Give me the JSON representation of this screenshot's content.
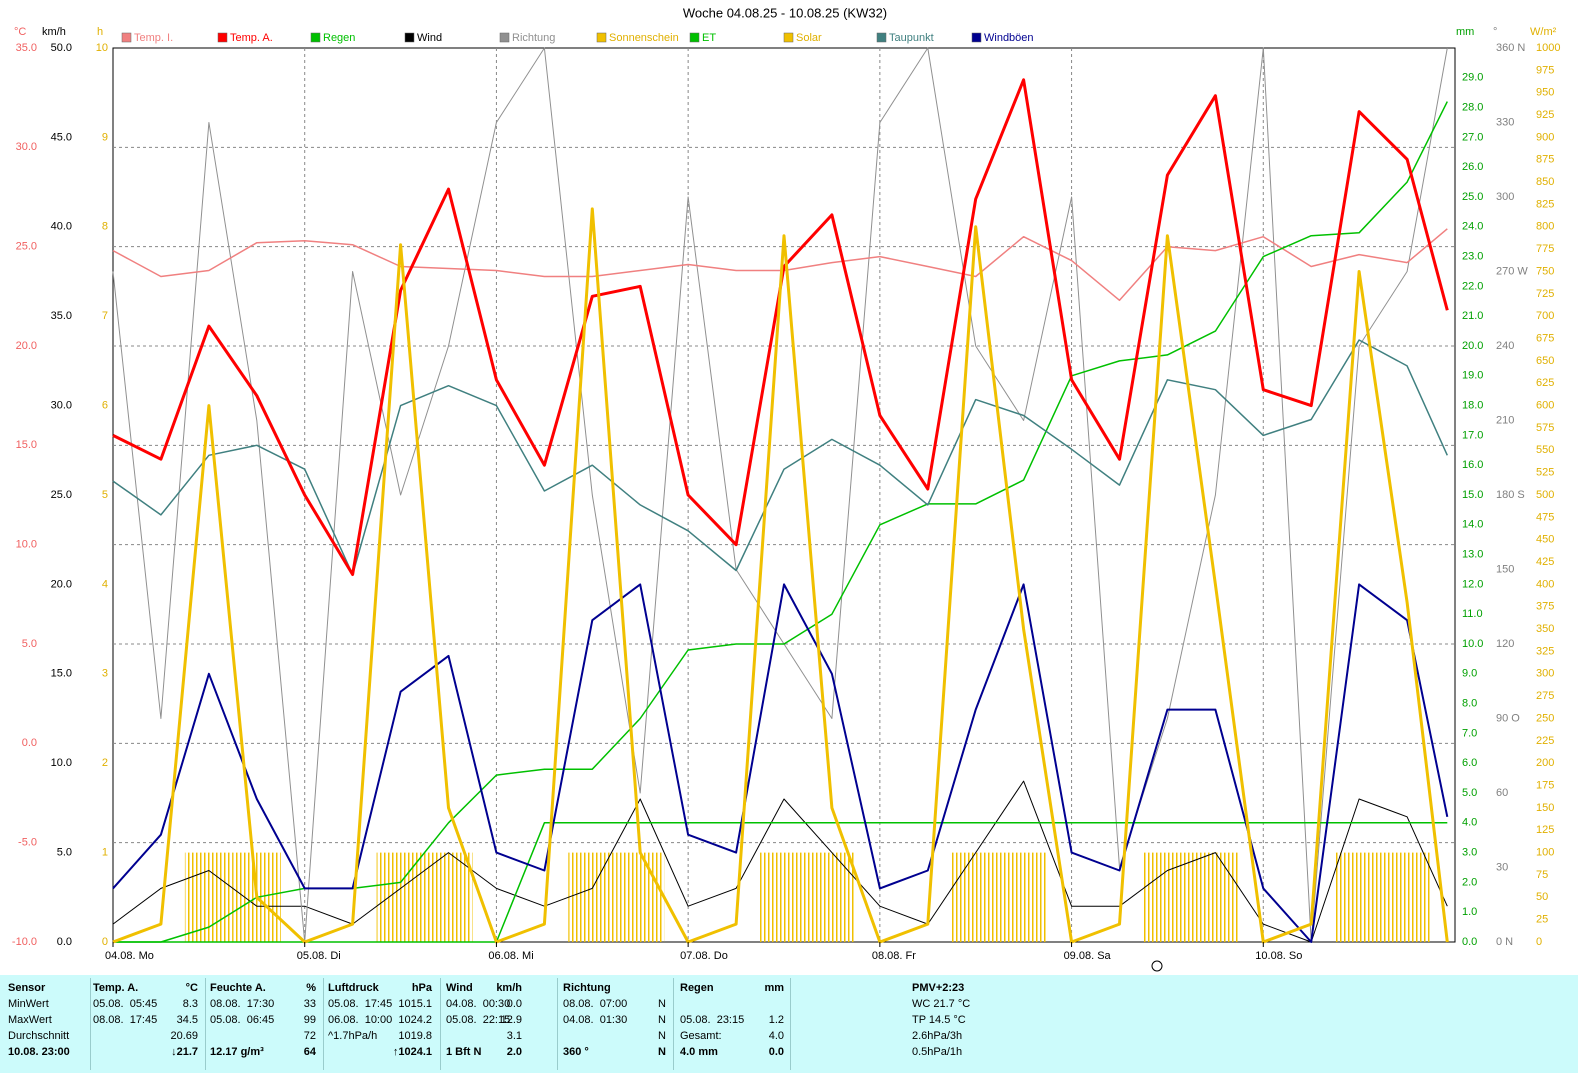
{
  "chart_data": {
    "type": "line",
    "title": "Woche 04.08.25 - 10.08.25 (KW32)",
    "grid": true,
    "xlim": [
      0,
      7
    ],
    "xticks": [
      {
        "value": 0,
        "label": "04.08.  Mo"
      },
      {
        "value": 1,
        "label": "05.08.  Di"
      },
      {
        "value": 2,
        "label": "06.08.  Mi"
      },
      {
        "value": 3,
        "label": "07.08.  Do"
      },
      {
        "value": 4,
        "label": "08.08.  Fr"
      },
      {
        "value": 5,
        "label": "09.08.  Sa"
      },
      {
        "value": 6,
        "label": "10.08.  So"
      }
    ],
    "x": [
      0,
      0.25,
      0.5,
      0.75,
      1,
      1.25,
      1.5,
      1.75,
      2,
      2.25,
      2.5,
      2.75,
      3,
      3.25,
      3.5,
      3.75,
      4,
      4.25,
      4.5,
      4.75,
      5,
      5.25,
      5.5,
      5.75,
      6,
      6.25,
      6.5,
      6.75,
      6.96
    ],
    "axes": [
      {
        "label": "°C",
        "color": "#f06060",
        "lim": [
          -10,
          35
        ],
        "ticks": [
          {
            "value": -10,
            "label": "-10.0"
          },
          {
            "value": -5,
            "label": "-5.0"
          },
          {
            "value": 0,
            "label": "0.0"
          },
          {
            "value": 5,
            "label": "5.0"
          },
          {
            "value": 10,
            "label": "10.0"
          },
          {
            "value": 15,
            "label": "15.0"
          },
          {
            "value": 20,
            "label": "20.0"
          },
          {
            "value": 25,
            "label": "25.0"
          },
          {
            "value": 30,
            "label": "30.0"
          },
          {
            "value": 35,
            "label": "35.0"
          }
        ]
      },
      {
        "label": "km/h",
        "color": "#000000",
        "lim": [
          0,
          50
        ],
        "ticks": [
          {
            "value": 0,
            "label": "0.0"
          },
          {
            "value": 5,
            "label": "5.0"
          },
          {
            "value": 10,
            "label": "10.0"
          },
          {
            "value": 15,
            "label": "15.0"
          },
          {
            "value": 20,
            "label": "20.0"
          },
          {
            "value": 25,
            "label": "25.0"
          },
          {
            "value": 30,
            "label": "30.0"
          },
          {
            "value": 35,
            "label": "35.0"
          },
          {
            "value": 40,
            "label": "40.0"
          },
          {
            "value": 45,
            "label": "45.0"
          },
          {
            "value": 50,
            "label": "50.0"
          }
        ]
      },
      {
        "label": "h",
        "color": "#e0b000",
        "lim": [
          0,
          10
        ],
        "ticks": [
          0,
          1,
          2,
          3,
          4,
          5,
          6,
          7,
          8,
          9,
          10
        ]
      },
      {
        "label": "mm",
        "color": "#00a000",
        "lim": [
          0,
          30
        ],
        "ticks": [
          {
            "value": 0,
            "label": "0.0"
          },
          {
            "value": 1,
            "label": "1.0"
          },
          {
            "value": 2,
            "label": "2.0"
          },
          {
            "value": 3,
            "label": "3.0"
          },
          {
            "value": 4,
            "label": "4.0"
          },
          {
            "value": 5,
            "label": "5.0"
          },
          {
            "value": 6,
            "label": "6.0"
          },
          {
            "value": 7,
            "label": "7.0"
          },
          {
            "value": 8,
            "label": "8.0"
          },
          {
            "value": 9,
            "label": "9.0"
          },
          {
            "value": 10,
            "label": "10.0"
          },
          {
            "value": 11,
            "label": "11.0"
          },
          {
            "value": 12,
            "label": "12.0"
          },
          {
            "value": 13,
            "label": "13.0"
          },
          {
            "value": 14,
            "label": "14.0"
          },
          {
            "value": 15,
            "label": "15.0"
          },
          {
            "value": 16,
            "label": "16.0"
          },
          {
            "value": 17,
            "label": "17.0"
          },
          {
            "value": 18,
            "label": "18.0"
          },
          {
            "value": 19,
            "label": "19.0"
          },
          {
            "value": 20,
            "label": "20.0"
          },
          {
            "value": 21,
            "label": "21.0"
          },
          {
            "value": 22,
            "label": "22.0"
          },
          {
            "value": 23,
            "label": "23.0"
          },
          {
            "value": 24,
            "label": "24.0"
          },
          {
            "value": 25,
            "label": "25.0"
          },
          {
            "value": 26,
            "label": "26.0"
          },
          {
            "value": 27,
            "label": "27.0"
          },
          {
            "value": 28,
            "label": "28.0"
          },
          {
            "value": 29,
            "label": "29.0"
          }
        ]
      },
      {
        "label": "°",
        "color": "#808080",
        "lim": [
          0,
          360
        ],
        "ticks": [
          {
            "value": 0,
            "label": "0 N"
          },
          30,
          60,
          {
            "value": 90,
            "label": "90 O"
          },
          120,
          150,
          {
            "value": 180,
            "label": "180 S"
          },
          210,
          240,
          {
            "value": 270,
            "label": "270 W"
          },
          300,
          330,
          {
            "value": 360,
            "label": "360 N"
          }
        ]
      },
      {
        "label": "W/m²",
        "color": "#e0b000",
        "lim": [
          0,
          1000
        ],
        "ticks": [
          0,
          25,
          50,
          75,
          100,
          125,
          150,
          175,
          200,
          225,
          250,
          275,
          300,
          325,
          350,
          375,
          400,
          425,
          450,
          475,
          500,
          525,
          550,
          575,
          600,
          625,
          650,
          675,
          700,
          725,
          750,
          775,
          800,
          825,
          850,
          875,
          900,
          925,
          950,
          975,
          1000
        ]
      }
    ],
    "series": [
      {
        "name": "Temp. I.",
        "color": "#f08080",
        "axis": "°C",
        "width": 1.5,
        "values": [
          24.8,
          23.5,
          23.8,
          25.2,
          25.3,
          25.1,
          24.0,
          23.9,
          23.8,
          23.5,
          23.5,
          23.8,
          24.1,
          23.8,
          23.8,
          24.2,
          24.5,
          24.0,
          23.5,
          25.5,
          24.3,
          22.3,
          25.0,
          24.8,
          25.5,
          24.0,
          24.6,
          24.2,
          25.9
        ]
      },
      {
        "name": "Temp. A.",
        "color": "#ff0000",
        "axis": "°C",
        "width": 3,
        "values": [
          15.5,
          14.3,
          21,
          17.5,
          12.5,
          8.5,
          22.8,
          27.9,
          18.3,
          14,
          22.5,
          23,
          12.5,
          10,
          24,
          26.6,
          16.5,
          12.8,
          27.4,
          33.4,
          18.3,
          14.3,
          28.6,
          32.6,
          17.8,
          17,
          31.8,
          29.4,
          21.8
        ]
      },
      {
        "name": "Regen",
        "color": "#00c000",
        "axis": "mm",
        "width": 1.5,
        "values": [
          0,
          0,
          0,
          0,
          0,
          0,
          0,
          0,
          0,
          4,
          4,
          4,
          4,
          4,
          4,
          4,
          4,
          4,
          4,
          4,
          4,
          4,
          4,
          4,
          4,
          4,
          4,
          4,
          4
        ]
      },
      {
        "name": "Wind",
        "color": "#000000",
        "axis": "km/h",
        "width": 1,
        "values": [
          1,
          3,
          4,
          2,
          2,
          1,
          3,
          5,
          3,
          2,
          3,
          8,
          2,
          3,
          8,
          5,
          2,
          1,
          5,
          9,
          2,
          2,
          4,
          5,
          1,
          0,
          8,
          7,
          2
        ]
      },
      {
        "name": "Richtung",
        "color": "#909090",
        "axis": "°",
        "width": 1,
        "values": [
          270,
          90,
          330,
          210,
          0,
          270,
          180,
          240,
          330,
          360,
          180,
          60,
          300,
          150,
          120,
          90,
          330,
          360,
          240,
          210,
          300,
          30,
          90,
          180,
          360,
          0,
          240,
          270,
          360
        ]
      },
      {
        "name": "Sonnenschein",
        "color": "#f0c000",
        "axis": "h",
        "kind": "bar",
        "values": [
          0,
          0,
          1,
          1,
          0,
          0,
          1,
          1,
          0,
          0,
          1,
          1,
          0,
          0,
          1,
          1,
          0,
          0,
          1,
          1,
          0,
          0,
          1,
          1,
          0,
          0,
          1,
          1,
          0
        ]
      },
      {
        "name": "ET",
        "color": "#00c000",
        "axis": "mm",
        "width": 1.5,
        "values": [
          0,
          0,
          0.5,
          1.5,
          1.8,
          1.8,
          2.0,
          4.0,
          5.6,
          5.8,
          5.8,
          7.5,
          9.8,
          10.0,
          10.0,
          11.0,
          14.0,
          14.7,
          14.7,
          15.5,
          19.0,
          19.5,
          19.7,
          20.5,
          23.0,
          23.7,
          23.8,
          25.5,
          28.2
        ]
      },
      {
        "name": "Solar",
        "color": "#f0c000",
        "axis": "W/m²",
        "width": 3,
        "values": [
          0,
          20,
          600,
          50,
          0,
          20,
          780,
          150,
          0,
          20,
          820,
          100,
          0,
          20,
          790,
          150,
          0,
          20,
          800,
          350,
          0,
          20,
          790,
          400,
          0,
          20,
          750,
          380,
          0
        ]
      },
      {
        "name": "Taupunkt",
        "color": "#408080",
        "axis": "°C",
        "width": 1.5,
        "values": [
          13.2,
          11.5,
          14.5,
          15,
          13.8,
          8.5,
          17,
          18,
          17,
          12.7,
          14,
          12,
          10.7,
          8.7,
          13.8,
          15.3,
          14,
          12,
          17.3,
          16.5,
          14.8,
          13,
          18.3,
          17.8,
          15.5,
          16.3,
          20.3,
          19,
          14.5
        ]
      },
      {
        "name": "Windböen",
        "color": "#000090",
        "axis": "km/h",
        "width": 2,
        "values": [
          3,
          6,
          15,
          8,
          3,
          3,
          14,
          16,
          5,
          4,
          18,
          20,
          6,
          5,
          20,
          15,
          3,
          4,
          13,
          20,
          5,
          4,
          13,
          13,
          3,
          0,
          20,
          18,
          7
        ]
      }
    ]
  },
  "summary_table": {
    "columns": [
      {
        "header": [
          "Sensor"
        ],
        "rows": [
          [
            "MinWert"
          ],
          [
            "MaxWert"
          ],
          [
            "Durchschnitt"
          ],
          [
            "10.08. 23:00"
          ]
        ]
      },
      {
        "header": [
          "Temp. A.",
          "°C"
        ],
        "rows": [
          [
            "05.08.  05:45",
            "8.3"
          ],
          [
            "08.08.  17:45",
            "34.5"
          ],
          [
            null,
            "20.69"
          ],
          [
            null,
            "↓21.7"
          ]
        ]
      },
      {
        "header": [
          "Feuchte A.",
          "%"
        ],
        "rows": [
          [
            "08.08.  17:30",
            "33"
          ],
          [
            "05.08.  06:45",
            "99"
          ],
          [
            null,
            "72"
          ],
          [
            "12.17 g/m³",
            "64"
          ]
        ]
      },
      {
        "header": [
          "Luftdruck",
          "hPa"
        ],
        "rows": [
          [
            "05.08.  17:45",
            "1015.1"
          ],
          [
            "06.08.  10:00",
            "1024.2"
          ],
          [
            "^1.7hPa/h",
            "1019.8"
          ],
          [
            null,
            "↑1024.1"
          ]
        ]
      },
      {
        "header": [
          "Wind",
          "km/h"
        ],
        "rows": [
          [
            "04.08.  00:30",
            "0.0"
          ],
          [
            "05.08.  22:15",
            "12.9"
          ],
          [
            null,
            "3.1"
          ],
          [
            "1 Bft N",
            "2.0"
          ]
        ]
      },
      {
        "header": [
          "Richtung"
        ],
        "rows": [
          [
            "08.08.  07:00",
            "N"
          ],
          [
            "04.08.  01:30",
            "N"
          ],
          [
            null,
            "N"
          ],
          [
            "360 °",
            "N"
          ]
        ]
      },
      {
        "header": [
          "Regen",
          "mm"
        ],
        "rows": [
          [
            null,
            null
          ],
          [
            "05.08.  23:15",
            "1.2"
          ],
          [
            "Gesamt:",
            "4.0"
          ],
          [
            "4.0 mm",
            "0.0"
          ]
        ]
      }
    ],
    "pmv": [
      "PMV+2:23",
      "WC 21.7 °C",
      "TP 14.5 °C",
      "2.6hPa/3h",
      "0.5hPa/1h"
    ]
  }
}
